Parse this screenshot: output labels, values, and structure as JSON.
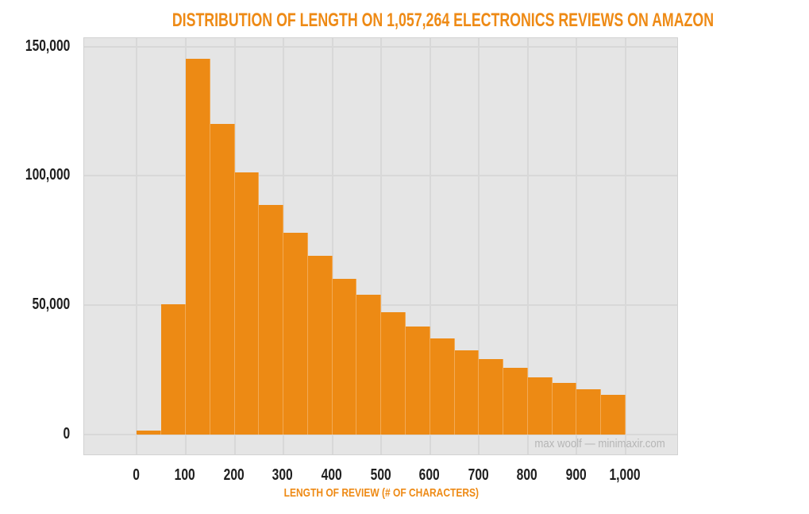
{
  "page": {
    "title": "DISTRIBUTION OF LENGTH ON 1,057,264 ELECTRONICS REVIEWS ON AMAZON",
    "watermark": "max woolf — minimaxir.com"
  },
  "chart_data": {
    "type": "bar",
    "subtype": "histogram",
    "title": "DISTRIBUTION OF LENGTH ON 1,057,264 ELECTRONICS REVIEWS ON AMAZON",
    "xlabel": "LENGTH OF REVIEW (# OF CHARACTERS)",
    "ylabel": "",
    "bin_width": 50,
    "bin_starts": [
      0,
      50,
      100,
      150,
      200,
      250,
      300,
      350,
      400,
      450,
      500,
      550,
      600,
      650,
      700,
      750,
      800,
      850,
      900,
      950
    ],
    "values": [
      1300,
      50400,
      145300,
      120200,
      101400,
      88800,
      78100,
      69200,
      60300,
      54100,
      47300,
      41800,
      37000,
      32600,
      29000,
      25600,
      22100,
      20000,
      17400,
      15400
    ],
    "x_ticks": {
      "values": [
        0,
        100,
        200,
        300,
        400,
        500,
        600,
        700,
        800,
        900,
        1000
      ],
      "labels": [
        "0",
        "100",
        "200",
        "300",
        "400",
        "500",
        "600",
        "700",
        "800",
        "900",
        "1,000"
      ]
    },
    "y_ticks": {
      "values": [
        0,
        50000,
        100000,
        150000
      ],
      "labels": [
        "0",
        "50,000",
        "100,000",
        "150,000"
      ]
    },
    "xlim": [
      -108,
      1109
    ],
    "ylim": [
      -8400,
      153300
    ],
    "grid": true,
    "legend": "none",
    "colors": {
      "bar": "#ED8A14",
      "title": "#EE8A15",
      "axis_title": "#EE8A15",
      "tick_label": "#1F1F1F",
      "panel_bg": "#E5E5E5",
      "gridline": "#D8D8D8",
      "watermark": "#B5B5B5",
      "page_bg": "#FFFFFF"
    }
  }
}
